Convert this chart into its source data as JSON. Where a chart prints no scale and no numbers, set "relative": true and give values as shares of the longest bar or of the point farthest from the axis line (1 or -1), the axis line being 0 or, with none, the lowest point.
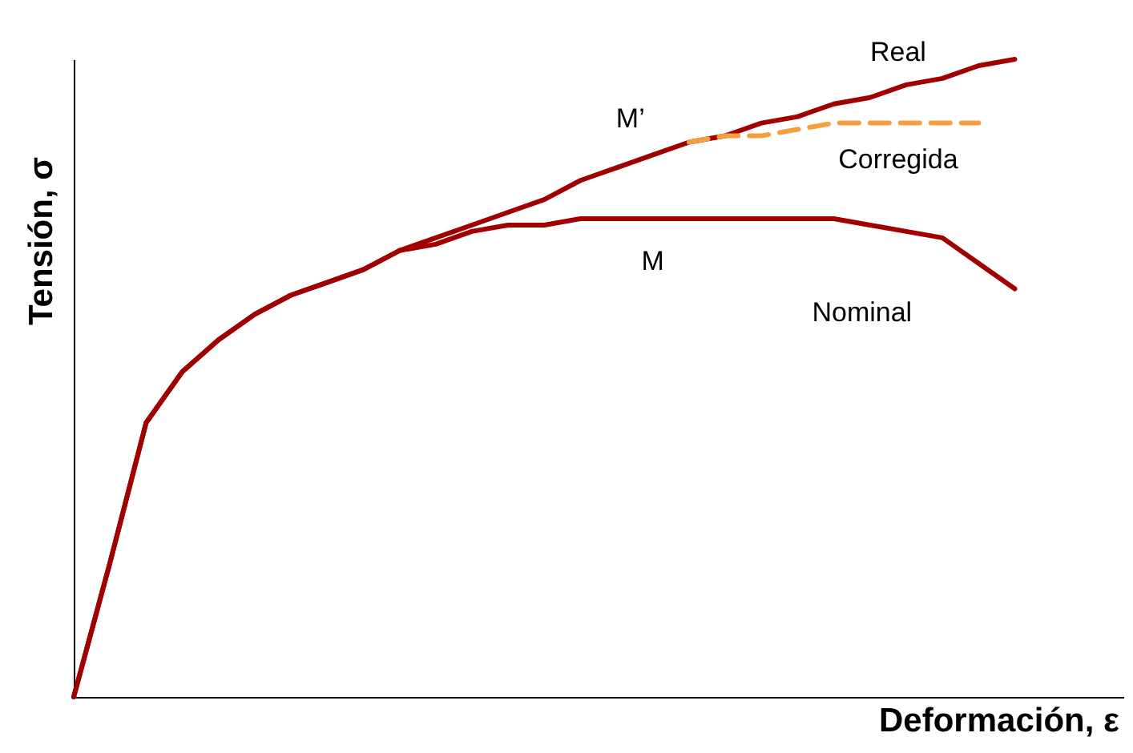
{
  "chart_data": {
    "type": "line",
    "relative": true,
    "xlabel": "Deformación, ε",
    "ylabel": "Tensión, σ",
    "legend": false,
    "marker": "none",
    "tick_labels": false,
    "categories": [
      null,
      null,
      null,
      null,
      null,
      null,
      null,
      null,
      null,
      null,
      null,
      null,
      null,
      null,
      null,
      null,
      null,
      null,
      null,
      null,
      null,
      null,
      null,
      null,
      null,
      null,
      null,
      null,
      null,
      null
    ],
    "series": [
      {
        "name": "Real",
        "color": "#a00000",
        "line_style": "solid",
        "values": [
          0,
          0.21,
          0.43,
          0.51,
          0.56,
          0.6,
          0.63,
          0.65,
          0.67,
          0.7,
          0.72,
          0.74,
          0.76,
          0.78,
          0.81,
          0.83,
          0.85,
          0.87,
          0.88,
          0.9,
          0.91,
          0.93,
          0.94,
          0.96,
          0.97,
          0.99,
          1,
          null,
          null,
          null
        ]
      },
      {
        "name": "Nominal",
        "color": "#a00000",
        "line_style": "solid",
        "values": [
          0,
          0.21,
          0.43,
          0.51,
          0.56,
          0.6,
          0.63,
          0.65,
          0.67,
          0.7,
          0.71,
          0.73,
          0.74,
          0.74,
          0.75,
          0.75,
          0.75,
          0.75,
          0.75,
          0.75,
          0.75,
          0.75,
          0.74,
          0.73,
          0.72,
          0.68,
          0.64,
          null,
          null,
          null
        ]
      },
      {
        "name": "Corregida",
        "color": "#f5a040",
        "line_style": "dashed",
        "values": [
          null,
          null,
          null,
          null,
          null,
          null,
          null,
          null,
          null,
          null,
          null,
          null,
          null,
          null,
          null,
          null,
          null,
          0.87,
          0.88,
          0.88,
          0.89,
          0.9,
          0.9,
          0.9,
          0.9,
          0.9,
          null,
          null,
          null,
          null
        ]
      }
    ],
    "annotations": [
      "M’",
      "M"
    ]
  }
}
